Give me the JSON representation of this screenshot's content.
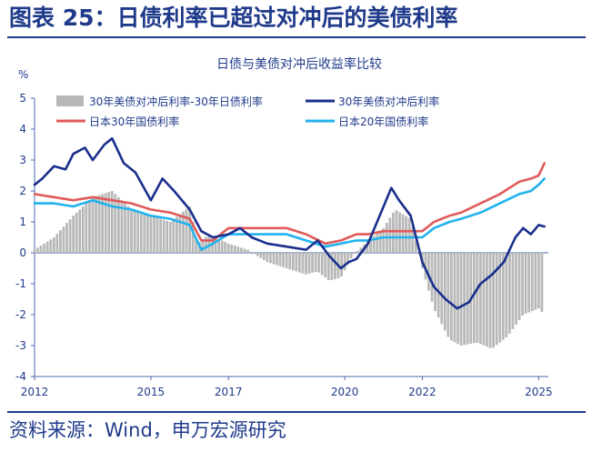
{
  "page": {
    "title": "图表 25：日债利率已超过对冲后的美债利率",
    "source": "资料来源：Wind，申万宏源研究"
  },
  "chart_data": {
    "type": "line",
    "title": "日债与美债对冲后收益率比较",
    "unit_label": "%",
    "ylim": [
      -4,
      5
    ],
    "yticks": [
      -4,
      -3,
      -2,
      -1,
      0,
      1,
      2,
      3,
      4,
      5
    ],
    "xlim": [
      2012.0,
      2025.25
    ],
    "xticks": [
      2012,
      2015,
      2017,
      2020,
      2022,
      2025
    ],
    "legend": "top",
    "colors": {
      "spread": "#b8b8b8",
      "us_hedged": "#1a2f8c",
      "jp30": "#e05a5a",
      "jp20": "#22b2ee",
      "axis": "#4a68b0",
      "text": "#1f3a8a"
    },
    "series": [
      {
        "name": "30年美债对冲后利率-30年日债利率",
        "type": "bar",
        "x": [
          2012.0,
          2012.5,
          2013.0,
          2013.5,
          2014.0,
          2014.5,
          2015.0,
          2015.5,
          2016.0,
          2016.2,
          2016.5,
          2017.0,
          2017.5,
          2018.0,
          2018.5,
          2019.0,
          2019.3,
          2019.6,
          2019.9,
          2020.2,
          2020.6,
          2021.0,
          2021.3,
          2021.7,
          2022.0,
          2022.3,
          2022.7,
          2023.0,
          2023.4,
          2023.8,
          2024.2,
          2024.6,
          2025.0,
          2025.15
        ],
        "values": [
          0.1,
          0.5,
          1.2,
          1.8,
          2.0,
          1.4,
          1.2,
          1.0,
          1.5,
          0.3,
          0.6,
          0.3,
          0.1,
          -0.3,
          -0.5,
          -0.7,
          -0.6,
          -0.9,
          -0.8,
          -0.1,
          0.4,
          0.8,
          1.4,
          1.1,
          -0.5,
          -1.8,
          -2.8,
          -3.0,
          -2.9,
          -3.1,
          -2.7,
          -2.0,
          -1.8,
          -2.0
        ]
      },
      {
        "name": "30年美债对冲后利率",
        "type": "line",
        "x": [
          2012.0,
          2012.2,
          2012.5,
          2012.8,
          2013.0,
          2013.3,
          2013.5,
          2013.8,
          2014.0,
          2014.3,
          2014.6,
          2015.0,
          2015.3,
          2015.6,
          2016.0,
          2016.3,
          2016.6,
          2017.0,
          2017.3,
          2017.6,
          2018.0,
          2018.5,
          2019.0,
          2019.3,
          2019.6,
          2019.9,
          2020.1,
          2020.3,
          2020.6,
          2020.9,
          2021.2,
          2021.4,
          2021.7,
          2022.0,
          2022.3,
          2022.6,
          2022.9,
          2023.2,
          2023.5,
          2023.8,
          2024.1,
          2024.4,
          2024.6,
          2024.8,
          2025.0,
          2025.15
        ],
        "values": [
          2.2,
          2.4,
          2.8,
          2.7,
          3.2,
          3.4,
          3.0,
          3.5,
          3.7,
          2.9,
          2.6,
          1.7,
          2.4,
          2.0,
          1.4,
          0.7,
          0.5,
          0.6,
          0.8,
          0.5,
          0.3,
          0.2,
          0.1,
          0.4,
          -0.1,
          -0.5,
          -0.3,
          -0.2,
          0.3,
          1.2,
          2.1,
          1.7,
          1.2,
          -0.3,
          -1.1,
          -1.5,
          -1.8,
          -1.6,
          -1.0,
          -0.7,
          -0.3,
          0.5,
          0.8,
          0.6,
          0.9,
          0.85
        ]
      },
      {
        "name": "日本30年国债利率",
        "type": "line",
        "x": [
          2012.0,
          2012.5,
          2013.0,
          2013.5,
          2014.0,
          2014.5,
          2015.0,
          2015.5,
          2016.0,
          2016.3,
          2016.6,
          2017.0,
          2017.5,
          2018.0,
          2018.5,
          2019.0,
          2019.5,
          2019.9,
          2020.3,
          2020.6,
          2021.0,
          2021.5,
          2022.0,
          2022.3,
          2022.7,
          2023.0,
          2023.5,
          2024.0,
          2024.5,
          2024.8,
          2025.0,
          2025.15
        ],
        "values": [
          1.9,
          1.8,
          1.7,
          1.8,
          1.7,
          1.6,
          1.4,
          1.3,
          1.1,
          0.4,
          0.4,
          0.8,
          0.8,
          0.8,
          0.8,
          0.6,
          0.3,
          0.4,
          0.6,
          0.6,
          0.7,
          0.7,
          0.7,
          1.0,
          1.2,
          1.3,
          1.6,
          1.9,
          2.3,
          2.4,
          2.5,
          2.9
        ]
      },
      {
        "name": "日本20年国债利率",
        "type": "line",
        "x": [
          2012.0,
          2012.5,
          2013.0,
          2013.5,
          2014.0,
          2014.5,
          2015.0,
          2015.5,
          2016.0,
          2016.3,
          2016.6,
          2017.0,
          2017.5,
          2018.0,
          2018.5,
          2019.0,
          2019.5,
          2019.9,
          2020.3,
          2020.6,
          2021.0,
          2021.5,
          2022.0,
          2022.3,
          2022.7,
          2023.0,
          2023.5,
          2024.0,
          2024.5,
          2024.8,
          2025.0,
          2025.15
        ],
        "values": [
          1.6,
          1.6,
          1.5,
          1.7,
          1.5,
          1.4,
          1.2,
          1.1,
          0.9,
          0.1,
          0.3,
          0.6,
          0.6,
          0.6,
          0.6,
          0.4,
          0.2,
          0.3,
          0.4,
          0.4,
          0.5,
          0.5,
          0.5,
          0.8,
          1.0,
          1.1,
          1.3,
          1.6,
          1.9,
          2.0,
          2.2,
          2.4
        ]
      }
    ]
  }
}
